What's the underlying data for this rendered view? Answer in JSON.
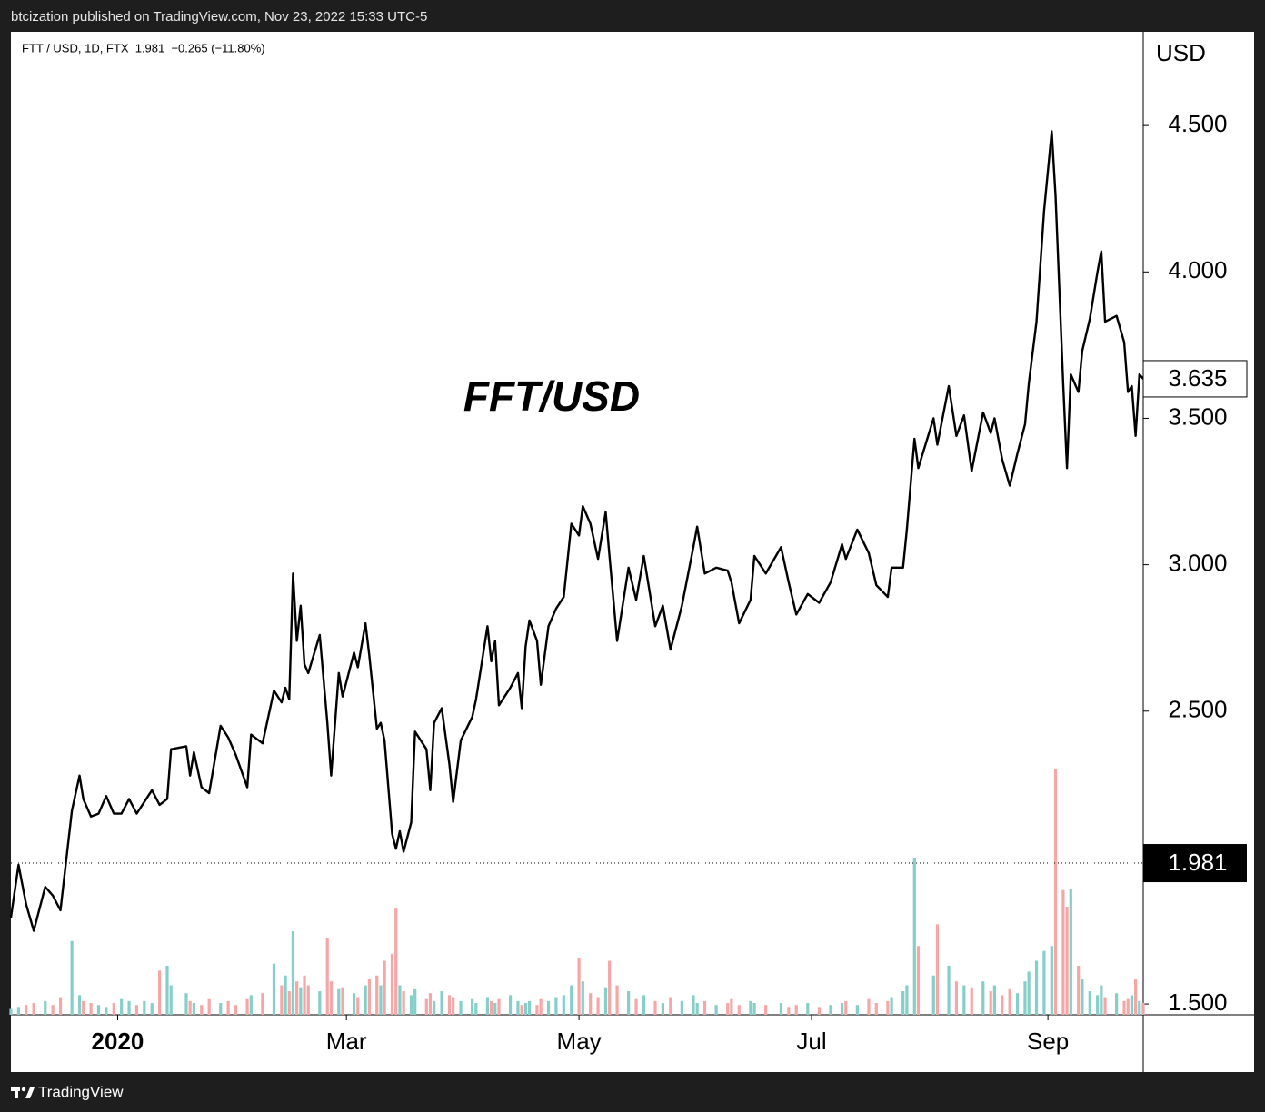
{
  "header": "btcization published on TradingView.com, Nov 23, 2022 15:33 UTC-5",
  "footer": "TradingView",
  "chart_data": {
    "type": "line",
    "legend": "FTT / USD, 1D, FTX  1.981  −0.265 (−11.80%)",
    "annotation": "FFT/USD",
    "y_axis_label": "USD",
    "price_line": 1.981,
    "x": [
      0,
      2,
      4,
      6,
      9,
      11,
      13,
      16,
      18,
      19,
      21,
      23,
      25,
      27,
      29,
      31,
      33,
      35,
      37,
      39,
      41,
      42,
      46,
      47,
      48,
      50,
      52,
      55,
      57,
      59,
      62,
      63,
      66,
      69,
      71,
      72,
      73,
      74,
      75,
      76,
      77,
      78,
      81,
      83,
      84,
      86,
      87,
      90,
      91,
      93,
      94,
      96,
      97,
      98,
      100,
      101,
      102,
      103,
      105,
      106,
      109,
      110,
      111,
      113,
      115,
      116,
      118,
      121,
      122,
      125,
      126,
      127,
      128,
      131,
      133,
      134,
      135,
      136,
      138,
      139,
      141,
      143,
      145,
      147,
      149,
      150,
      152,
      154,
      156,
      157,
      159,
      162,
      164,
      166,
      169,
      171,
      173,
      176,
      179,
      180,
      182,
      185,
      188,
      189,
      191,
      194,
      195,
      198,
      202,
      204,
      206,
      209,
      212,
      215,
      218,
      219,
      222,
      225,
      227,
      230,
      231,
      234,
      235,
      237,
      238,
      242,
      243,
      246,
      248,
      250,
      252,
      255,
      257,
      258,
      260,
      262,
      264,
      266,
      267,
      269,
      271,
      273,
      274,
      276,
      277,
      278,
      280,
      281,
      283,
      285,
      286,
      287,
      290,
      292,
      293,
      294,
      295,
      296,
      297
    ],
    "series": [
      {
        "name": "FTT / USD",
        "color": "#000000",
        "values": [
          1.795,
          1.975,
          1.84,
          1.75,
          1.9,
          1.87,
          1.82,
          2.16,
          2.28,
          2.2,
          2.14,
          2.15,
          2.21,
          2.15,
          2.15,
          2.2,
          2.15,
          2.19,
          2.23,
          2.18,
          2.2,
          2.37,
          2.38,
          2.28,
          2.36,
          2.24,
          2.22,
          2.45,
          2.41,
          2.35,
          2.24,
          2.42,
          2.39,
          2.57,
          2.53,
          2.58,
          2.54,
          2.97,
          2.74,
          2.86,
          2.66,
          2.63,
          2.76,
          2.46,
          2.28,
          2.63,
          2.55,
          2.7,
          2.65,
          2.8,
          2.69,
          2.44,
          2.46,
          2.4,
          2.08,
          2.03,
          2.09,
          2.02,
          2.12,
          2.43,
          2.37,
          2.23,
          2.46,
          2.51,
          2.32,
          2.19,
          2.4,
          2.48,
          2.54,
          2.79,
          2.67,
          2.74,
          2.52,
          2.58,
          2.63,
          2.51,
          2.72,
          2.81,
          2.74,
          2.59,
          2.79,
          2.85,
          2.89,
          3.14,
          3.1,
          3.2,
          3.14,
          3.02,
          3.18,
          3.03,
          2.74,
          2.99,
          2.88,
          3.03,
          2.79,
          2.86,
          2.71,
          2.86,
          3.06,
          3.13,
          2.97,
          2.99,
          2.98,
          2.94,
          2.8,
          2.88,
          3.03,
          2.97,
          3.06,
          2.94,
          2.83,
          2.9,
          2.87,
          2.94,
          3.07,
          3.02,
          3.12,
          3.04,
          2.93,
          2.89,
          2.99,
          2.99,
          3.12,
          3.43,
          3.33,
          3.5,
          3.41,
          3.61,
          3.44,
          3.51,
          3.32,
          3.52,
          3.45,
          3.5,
          3.36,
          3.27,
          3.38,
          3.48,
          3.62,
          3.83,
          4.21,
          4.48,
          4.26,
          3.62,
          3.33,
          3.65,
          3.59,
          3.73,
          3.84,
          4.0,
          4.07,
          3.83,
          3.85,
          3.76,
          3.59,
          3.61,
          3.44,
          3.65,
          3.635
        ]
      }
    ],
    "volume": {
      "up_color": "#85cfc8",
      "down_color": "#f6a6a6",
      "values": [
        6,
        8,
        10,
        12,
        14,
        10,
        18,
        75,
        20,
        14,
        12,
        10,
        8,
        12,
        16,
        14,
        10,
        14,
        12,
        45,
        50,
        30,
        22,
        14,
        12,
        10,
        16,
        12,
        14,
        10,
        16,
        20,
        22,
        52,
        30,
        40,
        24,
        85,
        34,
        28,
        40,
        30,
        24,
        78,
        34,
        26,
        28,
        22,
        18,
        30,
        36,
        40,
        30,
        55,
        62,
        108,
        30,
        24,
        20,
        26,
        16,
        22,
        14,
        24,
        20,
        18,
        14,
        16,
        12,
        18,
        14,
        12,
        16,
        20,
        14,
        10,
        12,
        14,
        10,
        16,
        14,
        18,
        20,
        30,
        58,
        34,
        22,
        18,
        28,
        55,
        30,
        24,
        16,
        20,
        14,
        12,
        18,
        14,
        20,
        12,
        14,
        10,
        12,
        16,
        10,
        14,
        12,
        10,
        12,
        8,
        10,
        12,
        8,
        10,
        12,
        14,
        10,
        16,
        12,
        14,
        18,
        24,
        30,
        160,
        70,
        40,
        92,
        50,
        34,
        30,
        28,
        34,
        24,
        30,
        20,
        26,
        22,
        34,
        44,
        55,
        65,
        70,
        250,
        127,
        110,
        128,
        50,
        36,
        24,
        20,
        30,
        18,
        22,
        14,
        16,
        20,
        36,
        14,
        12
      ],
      "ylim": [
        0,
        1000
      ]
    },
    "xlim": [
      0,
      297
    ],
    "xticks": [
      {
        "value": 28,
        "label": "2020"
      },
      {
        "value": 88,
        "label": "Mar"
      },
      {
        "value": 149,
        "label": "May"
      },
      {
        "value": 210,
        "label": "Jul"
      },
      {
        "value": 272,
        "label": "Sep"
      }
    ],
    "ylim": [
      1.463,
      4.82
    ],
    "yticks": [
      {
        "value": 1.5,
        "label": "1.500"
      },
      {
        "value": 2.5,
        "label": "2.500"
      },
      {
        "value": 3,
        "label": "3.000"
      },
      {
        "value": 3.5,
        "label": "3.500"
      },
      {
        "value": 4,
        "label": "4.000"
      },
      {
        "value": 4.5,
        "label": "4.500"
      }
    ],
    "grid": false
  }
}
